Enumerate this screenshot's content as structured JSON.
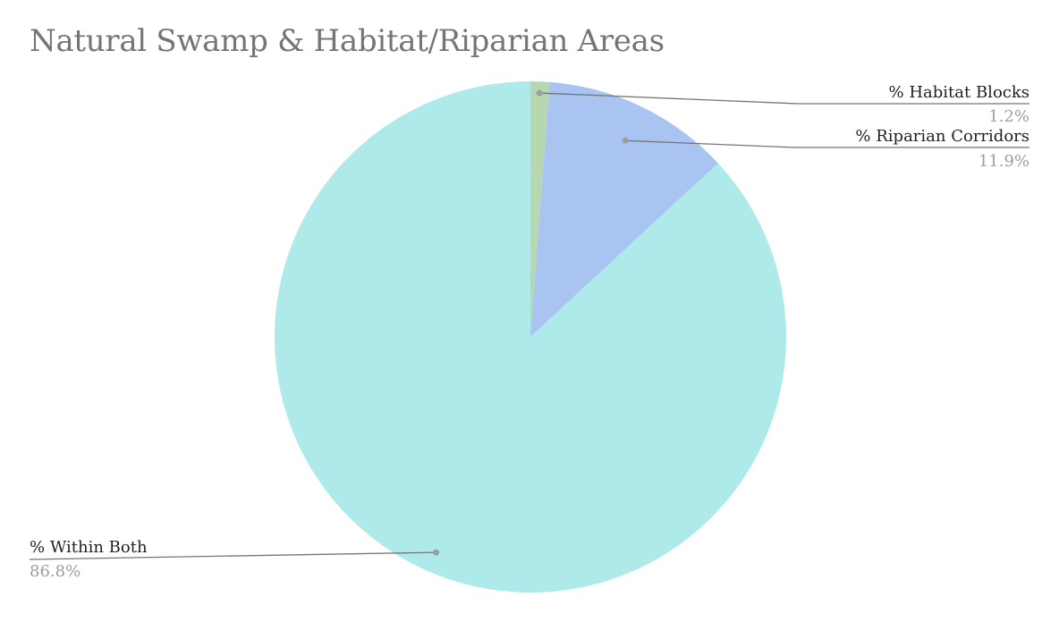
{
  "title": "Natural Swamp & Habitat/Riparian Areas",
  "colors": {
    "title": "#757575",
    "leader_line": "#757575",
    "leader_dot": "#9e9e9e",
    "label_name": "#222222",
    "label_value": "#9e9e9e"
  },
  "chart_data": {
    "type": "pie",
    "title": "Natural Swamp & Habitat/Riparian Areas",
    "slices": [
      {
        "name": "% Habitat Blocks",
        "value": 1.2,
        "label": "1.2%",
        "color": "#b7d7b0"
      },
      {
        "name": "% Riparian Corridors",
        "value": 11.9,
        "label": "11.9%",
        "color": "#a9c4f0"
      },
      {
        "name": "% Within Both",
        "value": 86.8,
        "label": "86.8%",
        "color": "#aeeaea"
      }
    ],
    "start_angle": "12 o'clock",
    "direction": "clockwise",
    "legend": "none (labels with leader lines)"
  }
}
